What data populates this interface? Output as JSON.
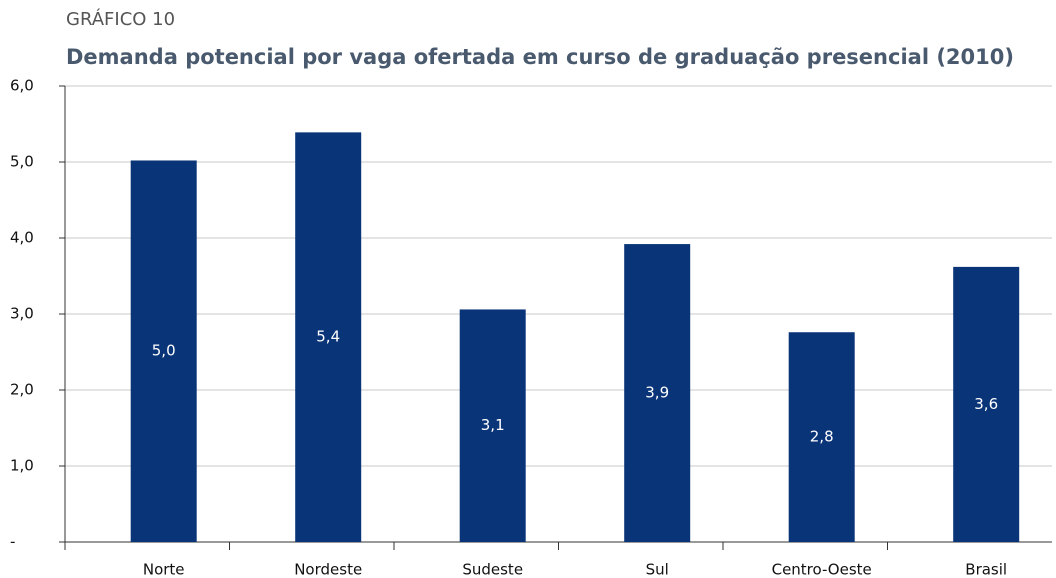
{
  "header": {
    "label": "GRÁFICO 10"
  },
  "chart_data": {
    "type": "bar",
    "title": "Demanda potencial por vaga ofertada em curso de graduação presencial (2010)",
    "categories": [
      "Norte",
      "Nordeste",
      "Sudeste",
      "Sul",
      "Centro-Oeste",
      "Brasil"
    ],
    "values": [
      5.02,
      5.39,
      3.06,
      3.92,
      2.76,
      3.62
    ],
    "value_labels": [
      "5,0",
      "5,4",
      "3,1",
      "3,9",
      "2,8",
      "3,6"
    ],
    "color": "#0a3478",
    "ylim": [
      0,
      6
    ],
    "yticks": [
      {
        "value": 0,
        "label": "-"
      },
      {
        "value": 1,
        "label": "1,0"
      },
      {
        "value": 2,
        "label": "2,0"
      },
      {
        "value": 3,
        "label": "3,0"
      },
      {
        "value": 4,
        "label": "4,0"
      },
      {
        "value": 5,
        "label": "5,0"
      },
      {
        "value": 6,
        "label": "6,0"
      }
    ],
    "grid": true
  }
}
